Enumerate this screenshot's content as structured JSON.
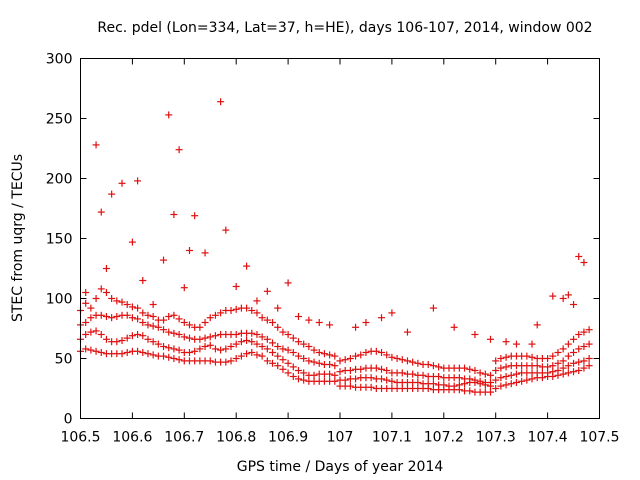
{
  "chart_data": {
    "type": "scatter",
    "title": "Rec. pdel (Lon=334, Lat=37, h=HE), days 106-107, 2014, window 002",
    "xlabel": "GPS time / Days of year 2014",
    "ylabel": "STEC from uqrg / TECUs",
    "xlim": [
      106.5,
      107.5
    ],
    "ylim": [
      0,
      300
    ],
    "xticks": [
      "106.5",
      "106.6",
      "106.7",
      "106.8",
      "106.9",
      "107",
      "107.1",
      "107.2",
      "107.3",
      "107.4",
      "107.5"
    ],
    "yticks": [
      "0",
      "50",
      "100",
      "150",
      "200",
      "250",
      "300"
    ],
    "grid": false,
    "marker": "+",
    "color": "#e01010",
    "series": [
      {
        "x": [
          106.5,
          106.51,
          106.52,
          106.53,
          106.54,
          106.55,
          106.56,
          106.57,
          106.58,
          106.59,
          106.6,
          106.61,
          106.62,
          106.63,
          106.64,
          106.65,
          106.66,
          106.67,
          106.68,
          106.69,
          106.7,
          106.71,
          106.72,
          106.73,
          106.74,
          106.75,
          106.76,
          106.77,
          106.78,
          106.79,
          106.8,
          106.81,
          106.82,
          106.83,
          106.84,
          106.85,
          106.86,
          106.87,
          106.88,
          106.89,
          106.9,
          106.91,
          106.92,
          106.93,
          106.94,
          106.95,
          106.96,
          106.97,
          106.98,
          106.99,
          107.0,
          107.01,
          107.02,
          107.03,
          107.04,
          107.05,
          107.06,
          107.07,
          107.08,
          107.09,
          107.1,
          107.11,
          107.12,
          107.13,
          107.14,
          107.15,
          107.16,
          107.17,
          107.18,
          107.19,
          107.2,
          107.21,
          107.22,
          107.23,
          107.24,
          107.25,
          107.26,
          107.27,
          107.28,
          107.29,
          107.3,
          107.31,
          107.32,
          107.33,
          107.34,
          107.35,
          107.36,
          107.37,
          107.38,
          107.39,
          107.4,
          107.41,
          107.42,
          107.43,
          107.44,
          107.45,
          107.46,
          107.47,
          107.48
        ],
        "y": [
          56,
          58,
          57,
          56,
          55,
          54,
          54,
          54,
          54,
          55,
          56,
          56,
          55,
          54,
          53,
          52,
          52,
          51,
          50,
          49,
          48,
          48,
          48,
          48,
          48,
          48,
          47,
          47,
          47,
          48,
          50,
          52,
          54,
          55,
          53,
          52,
          48,
          46,
          44,
          41,
          38,
          35,
          33,
          32,
          31,
          31,
          31,
          31,
          31,
          31,
          27,
          27,
          27,
          26,
          26,
          26,
          26,
          25,
          25,
          25,
          25,
          25,
          25,
          25,
          25,
          25,
          25,
          25,
          24,
          24,
          24,
          24,
          24,
          24,
          23,
          23,
          22,
          22,
          22,
          22,
          25,
          27,
          28,
          29,
          30,
          31,
          32,
          33,
          34,
          34,
          35,
          35,
          36,
          37,
          38,
          39,
          40,
          42,
          44
        ]
      },
      {
        "x": [
          106.5,
          106.51,
          106.52,
          106.53,
          106.54,
          106.55,
          106.56,
          106.57,
          106.58,
          106.59,
          106.6,
          106.61,
          106.62,
          106.63,
          106.64,
          106.65,
          106.66,
          106.67,
          106.68,
          106.69,
          106.7,
          106.71,
          106.72,
          106.73,
          106.74,
          106.75,
          106.76,
          106.77,
          106.78,
          106.79,
          106.8,
          106.81,
          106.82,
          106.83,
          106.84,
          106.85,
          106.86,
          106.87,
          106.88,
          106.89,
          106.9,
          106.91,
          106.92,
          106.93,
          106.94,
          106.95,
          106.96,
          106.97,
          106.98,
          106.99,
          107.0,
          107.01,
          107.02,
          107.03,
          107.04,
          107.05,
          107.06,
          107.07,
          107.08,
          107.09,
          107.1,
          107.11,
          107.12,
          107.13,
          107.14,
          107.15,
          107.16,
          107.17,
          107.18,
          107.19,
          107.2,
          107.21,
          107.22,
          107.23,
          107.24,
          107.25,
          107.26,
          107.27,
          107.28,
          107.29,
          107.3,
          107.31,
          107.32,
          107.33,
          107.34,
          107.35,
          107.36,
          107.37,
          107.38,
          107.39,
          107.4,
          107.41,
          107.42,
          107.43,
          107.44,
          107.45,
          107.46,
          107.47,
          107.48
        ],
        "y": [
          66,
          70,
          72,
          73,
          70,
          66,
          64,
          64,
          65,
          67,
          69,
          70,
          69,
          66,
          64,
          62,
          60,
          59,
          58,
          57,
          55,
          55,
          56,
          58,
          60,
          61,
          58,
          57,
          58,
          60,
          62,
          64,
          65,
          64,
          62,
          60,
          58,
          55,
          52,
          49,
          46,
          43,
          40,
          38,
          36,
          36,
          37,
          37,
          37,
          36,
          32,
          32,
          33,
          33,
          34,
          34,
          34,
          33,
          33,
          32,
          31,
          30,
          30,
          30,
          30,
          30,
          29,
          29,
          29,
          28,
          28,
          27,
          27,
          28,
          29,
          30,
          30,
          29,
          28,
          27,
          32,
          34,
          35,
          36,
          37,
          38,
          38,
          38,
          38,
          38,
          38,
          39,
          40,
          42,
          44,
          46,
          47,
          48,
          50
        ]
      },
      {
        "x": [
          106.5,
          106.51,
          106.52,
          106.53,
          106.54,
          106.55,
          106.56,
          106.57,
          106.58,
          106.59,
          106.6,
          106.61,
          106.62,
          106.63,
          106.64,
          106.65,
          106.66,
          106.67,
          106.68,
          106.69,
          106.7,
          106.71,
          106.72,
          106.73,
          106.74,
          106.75,
          106.76,
          106.77,
          106.78,
          106.79,
          106.8,
          106.81,
          106.82,
          106.83,
          106.84,
          106.85,
          106.86,
          106.87,
          106.88,
          106.89,
          106.9,
          106.91,
          106.92,
          106.93,
          106.94,
          106.95,
          106.96,
          106.97,
          106.98,
          106.99,
          107.0,
          107.01,
          107.02,
          107.03,
          107.04,
          107.05,
          107.06,
          107.07,
          107.08,
          107.09,
          107.1,
          107.11,
          107.12,
          107.13,
          107.14,
          107.15,
          107.16,
          107.17,
          107.18,
          107.19,
          107.2,
          107.21,
          107.22,
          107.23,
          107.24,
          107.25,
          107.26,
          107.27,
          107.28,
          107.29,
          107.3,
          107.31,
          107.32,
          107.33,
          107.34,
          107.35,
          107.36,
          107.37,
          107.38,
          107.39,
          107.4,
          107.41,
          107.42,
          107.43,
          107.44,
          107.45,
          107.46,
          107.47,
          107.48
        ],
        "y": [
          78,
          80,
          84,
          86,
          86,
          85,
          84,
          85,
          86,
          86,
          84,
          83,
          80,
          78,
          77,
          76,
          74,
          72,
          71,
          70,
          68,
          67,
          66,
          66,
          67,
          68,
          69,
          70,
          70,
          70,
          70,
          71,
          71,
          71,
          70,
          68,
          66,
          63,
          60,
          58,
          57,
          55,
          52,
          50,
          48,
          47,
          46,
          45,
          45,
          44,
          39,
          40,
          40,
          41,
          41,
          42,
          42,
          42,
          41,
          40,
          38,
          38,
          38,
          37,
          37,
          36,
          36,
          35,
          35,
          35,
          34,
          34,
          34,
          34,
          33,
          33,
          32,
          31,
          30,
          30,
          40,
          42,
          43,
          44,
          44,
          44,
          44,
          44,
          44,
          43,
          43,
          44,
          46,
          48,
          52,
          55,
          58,
          60,
          62
        ]
      },
      {
        "x": [
          106.5,
          106.51,
          106.52,
          106.53,
          106.54,
          106.55,
          106.56,
          106.57,
          106.58,
          106.59,
          106.6,
          106.61,
          106.62,
          106.63,
          106.64,
          106.65,
          106.66,
          106.67,
          106.68,
          106.69,
          106.7,
          106.71,
          106.72,
          106.73,
          106.74,
          106.75,
          106.76,
          106.77,
          106.78,
          106.79,
          106.8,
          106.81,
          106.82,
          106.83,
          106.84,
          106.85,
          106.86,
          106.87,
          106.88,
          106.89,
          106.9,
          106.91,
          106.92,
          106.93,
          106.94,
          106.95,
          106.96,
          106.97,
          106.98,
          106.99,
          107.0,
          107.01,
          107.02,
          107.03,
          107.04,
          107.05,
          107.06,
          107.07,
          107.08,
          107.09,
          107.1,
          107.11,
          107.12,
          107.13,
          107.14,
          107.15,
          107.16,
          107.17,
          107.18,
          107.19,
          107.2,
          107.21,
          107.22,
          107.23,
          107.24,
          107.25,
          107.26,
          107.27,
          107.28,
          107.29,
          107.3,
          107.31,
          107.32,
          107.33,
          107.34,
          107.35,
          107.36,
          107.37,
          107.38,
          107.39,
          107.4,
          107.41,
          107.42,
          107.43,
          107.44,
          107.45,
          107.46,
          107.47,
          107.48
        ],
        "y": [
          90,
          96,
          92,
          100,
          108,
          105,
          100,
          98,
          97,
          95,
          93,
          92,
          88,
          86,
          85,
          82,
          82,
          85,
          86,
          83,
          80,
          78,
          76,
          76,
          80,
          84,
          86,
          88,
          90,
          90,
          91,
          92,
          92,
          90,
          88,
          84,
          82,
          80,
          76,
          72,
          70,
          67,
          64,
          62,
          60,
          57,
          55,
          54,
          53,
          52,
          48,
          49,
          50,
          52,
          53,
          55,
          56,
          56,
          55,
          53,
          51,
          50,
          49,
          48,
          47,
          46,
          45,
          45,
          44,
          43,
          42,
          42,
          42,
          42,
          42,
          41,
          40,
          38,
          37,
          36,
          48,
          50,
          51,
          52,
          52,
          52,
          52,
          51,
          50,
          50,
          50,
          52,
          55,
          58,
          62,
          66,
          70,
          72,
          74
        ]
      },
      {
        "x": [
          106.51,
          106.53,
          106.54,
          106.55,
          106.56,
          106.58,
          106.6,
          106.61,
          106.62,
          106.64,
          106.66,
          106.67,
          106.68,
          106.69,
          106.7,
          106.71,
          106.72,
          106.74,
          106.77,
          106.78,
          106.8,
          106.82,
          106.84,
          106.86,
          106.88,
          106.9,
          106.92,
          106.94,
          106.96,
          106.98,
          107.03,
          107.05,
          107.08,
          107.1,
          107.13,
          107.18,
          107.22,
          107.26,
          107.29,
          107.32,
          107.34,
          107.37,
          107.38,
          107.41,
          107.43,
          107.44,
          107.45,
          107.46,
          107.47
        ],
        "y": [
          105,
          228,
          172,
          125,
          187,
          196,
          147,
          198,
          115,
          95,
          132,
          253,
          170,
          224,
          109,
          140,
          169,
          138,
          264,
          157,
          110,
          127,
          98,
          106,
          92,
          113,
          85,
          82,
          80,
          78,
          76,
          80,
          84,
          88,
          72,
          92,
          76,
          70,
          66,
          64,
          62,
          62,
          78,
          102,
          100,
          103,
          95,
          135,
          130
        ]
      }
    ]
  }
}
